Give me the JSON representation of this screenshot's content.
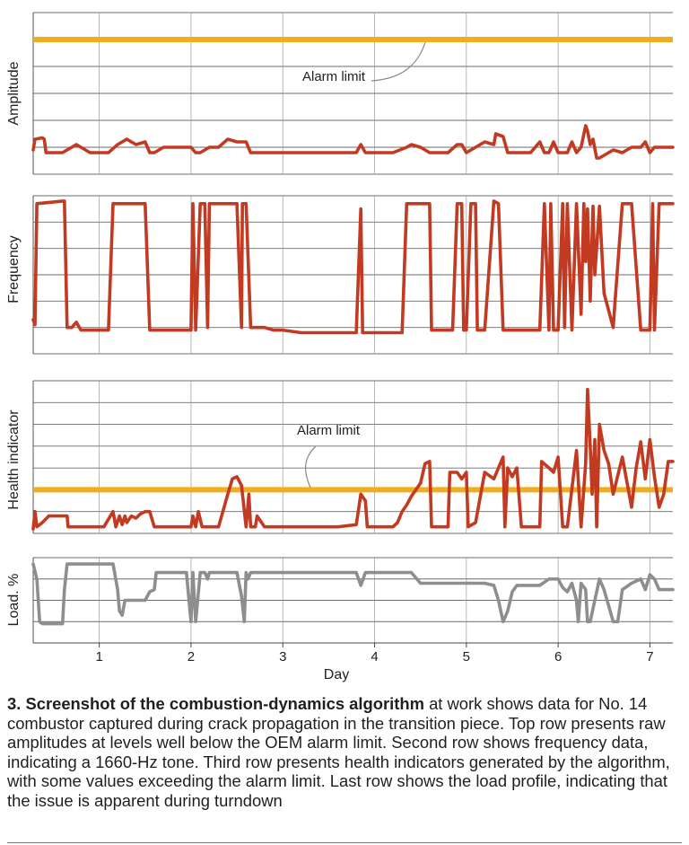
{
  "chart_data": [
    {
      "type": "line",
      "ylabel": "Amplitude",
      "ylim": [
        0,
        6
      ],
      "alarm_limit": {
        "label": "Alarm limit",
        "y": 5.0,
        "color": "#f2ad1f"
      },
      "series": [
        {
          "color": "#c23a22",
          "x": [
            0.28,
            0.3,
            0.38,
            0.4,
            0.42,
            0.6,
            0.75,
            0.9,
            1.0,
            1.1,
            1.2,
            1.3,
            1.4,
            1.5,
            1.55,
            1.6,
            1.7,
            1.8,
            1.9,
            2.0,
            2.05,
            2.1,
            2.2,
            2.3,
            2.4,
            2.5,
            2.6,
            2.65,
            2.7,
            2.8,
            2.9,
            3.0,
            3.2,
            3.4,
            3.6,
            3.8,
            3.85,
            3.9,
            3.95,
            4.0,
            4.2,
            4.35,
            4.4,
            4.5,
            4.6,
            4.7,
            4.8,
            4.9,
            4.95,
            5.0,
            5.1,
            5.2,
            5.3,
            5.32,
            5.4,
            5.45,
            5.5,
            5.6,
            5.7,
            5.8,
            5.85,
            5.9,
            5.95,
            6.0,
            6.1,
            6.15,
            6.2,
            6.25,
            6.3,
            6.32,
            6.35,
            6.38,
            6.42,
            6.45,
            6.5,
            6.6,
            6.7,
            6.8,
            6.9,
            6.95,
            7.0,
            7.05,
            7.1,
            7.2,
            7.25
          ],
          "y": [
            0.9,
            1.3,
            1.35,
            1.3,
            0.8,
            0.8,
            1.1,
            0.8,
            0.8,
            0.8,
            1.1,
            1.3,
            1.1,
            1.2,
            0.8,
            0.8,
            1.0,
            1.0,
            1.0,
            1.0,
            0.8,
            0.8,
            1.0,
            1.0,
            1.3,
            1.2,
            1.2,
            0.8,
            0.8,
            0.8,
            0.8,
            0.8,
            0.8,
            0.8,
            0.8,
            0.8,
            1.1,
            0.8,
            0.8,
            0.8,
            0.8,
            1.0,
            1.1,
            1.0,
            0.8,
            0.8,
            0.8,
            1.1,
            1.1,
            0.8,
            1.0,
            1.2,
            1.1,
            1.5,
            1.4,
            0.8,
            0.8,
            0.8,
            0.8,
            1.2,
            0.8,
            0.8,
            1.2,
            0.8,
            0.8,
            1.2,
            0.8,
            1.0,
            1.8,
            1.6,
            1.1,
            1.3,
            0.6,
            0.6,
            0.7,
            0.9,
            0.8,
            1.0,
            1.0,
            1.2,
            0.8,
            1.0,
            1.0,
            1.0,
            1.0
          ]
        }
      ],
      "grid": true
    },
    {
      "type": "line",
      "ylabel": "Frequency",
      "ylim": [
        0,
        6
      ],
      "series": [
        {
          "color": "#c23a22",
          "x": [
            0.28,
            0.3,
            0.32,
            0.6,
            0.62,
            0.65,
            0.7,
            0.75,
            0.8,
            0.95,
            1.0,
            1.1,
            1.15,
            1.2,
            1.45,
            1.5,
            1.55,
            1.6,
            1.7,
            1.8,
            1.9,
            1.95,
            2.0,
            2.02,
            2.05,
            2.1,
            2.15,
            2.18,
            2.2,
            2.25,
            2.4,
            2.5,
            2.55,
            2.56,
            2.6,
            2.65,
            2.7,
            2.8,
            2.9,
            3.0,
            3.2,
            3.4,
            3.6,
            3.8,
            3.85,
            3.87,
            3.9,
            3.92,
            4.0,
            4.2,
            4.3,
            4.35,
            4.4,
            4.6,
            4.62,
            4.65,
            4.7,
            4.85,
            4.9,
            4.95,
            4.97,
            5.0,
            5.05,
            5.1,
            5.12,
            5.2,
            5.3,
            5.35,
            5.4,
            5.45,
            5.5,
            5.7,
            5.8,
            5.85,
            5.9,
            5.92,
            5.95,
            6.0,
            6.05,
            6.07,
            6.1,
            6.15,
            6.2,
            6.25,
            6.28,
            6.3,
            6.32,
            6.35,
            6.38,
            6.4,
            6.45,
            6.5,
            6.6,
            6.62,
            6.7,
            6.8,
            6.9,
            6.95,
            7.0,
            7.03,
            7.05,
            7.1,
            7.2,
            7.25
          ],
          "y": [
            1.3,
            1.1,
            5.7,
            5.8,
            5.8,
            1.0,
            1.0,
            1.2,
            0.9,
            0.9,
            0.9,
            0.9,
            5.7,
            5.7,
            5.7,
            5.7,
            0.9,
            0.9,
            0.9,
            0.9,
            0.9,
            0.9,
            0.9,
            5.7,
            0.9,
            5.7,
            5.7,
            1.0,
            5.7,
            5.7,
            5.7,
            5.7,
            1.0,
            5.7,
            5.7,
            1.0,
            1.0,
            1.0,
            0.9,
            0.9,
            0.8,
            0.8,
            0.8,
            0.8,
            5.5,
            0.8,
            0.8,
            0.8,
            0.8,
            0.8,
            0.8,
            5.7,
            5.7,
            5.7,
            0.9,
            0.9,
            0.9,
            0.9,
            5.7,
            5.7,
            0.9,
            0.9,
            5.7,
            5.7,
            0.9,
            0.9,
            5.8,
            5.7,
            0.9,
            0.9,
            0.9,
            0.9,
            0.9,
            5.7,
            0.9,
            5.7,
            0.9,
            0.9,
            5.7,
            1.0,
            5.7,
            0.9,
            5.7,
            1.5,
            5.7,
            3.5,
            5.5,
            2.0,
            5.6,
            3.0,
            5.6,
            2.3,
            1.0,
            2.0,
            5.7,
            5.7,
            0.9,
            0.9,
            0.9,
            5.7,
            0.9,
            5.7,
            5.7,
            5.7
          ]
        }
      ],
      "grid": true
    },
    {
      "type": "line",
      "ylabel": "Health indicator",
      "ylim": [
        0,
        7
      ],
      "alarm_limit": {
        "label": "Alarm limit",
        "y": 2.0,
        "color": "#f2ad1f"
      },
      "series": [
        {
          "color": "#c23a22",
          "x": [
            0.28,
            0.3,
            0.32,
            0.38,
            0.45,
            0.55,
            0.65,
            0.66,
            0.7,
            0.75,
            1.0,
            1.05,
            1.15,
            1.18,
            1.22,
            1.25,
            1.28,
            1.3,
            1.35,
            1.4,
            1.45,
            1.5,
            1.55,
            1.6,
            1.62,
            1.65,
            1.75,
            1.9,
            2.0,
            2.02,
            2.05,
            2.08,
            2.12,
            2.15,
            2.2,
            2.3,
            2.4,
            2.45,
            2.5,
            2.55,
            2.6,
            2.63,
            2.65,
            2.7,
            2.72,
            2.8,
            2.9,
            3.0,
            3.2,
            3.4,
            3.6,
            3.8,
            3.85,
            3.9,
            3.92,
            4.0,
            4.2,
            4.25,
            4.3,
            4.35,
            4.4,
            4.45,
            4.5,
            4.55,
            4.6,
            4.62,
            4.7,
            4.8,
            4.82,
            4.9,
            4.95,
            5.0,
            5.02,
            5.1,
            5.2,
            5.3,
            5.35,
            5.4,
            5.42,
            5.45,
            5.5,
            5.55,
            5.6,
            5.65,
            5.7,
            5.8,
            5.82,
            5.9,
            5.95,
            6.0,
            6.05,
            6.1,
            6.2,
            6.25,
            6.3,
            6.32,
            6.35,
            6.37,
            6.4,
            6.42,
            6.45,
            6.5,
            6.55,
            6.6,
            6.7,
            6.8,
            6.85,
            6.9,
            6.95,
            7.0,
            7.05,
            7.1,
            7.15,
            7.2,
            7.25
          ],
          "y": [
            0.2,
            1.0,
            0.3,
            0.5,
            0.8,
            0.8,
            0.8,
            0.3,
            0.3,
            0.3,
            0.3,
            0.3,
            1.0,
            0.3,
            0.8,
            0.4,
            0.8,
            0.5,
            0.8,
            0.7,
            0.9,
            1.0,
            1.0,
            0.3,
            0.3,
            0.3,
            0.3,
            0.3,
            0.3,
            0.8,
            0.3,
            1.0,
            0.3,
            0.3,
            0.3,
            0.3,
            1.8,
            2.5,
            2.6,
            2.2,
            0.3,
            1.8,
            0.3,
            0.3,
            0.8,
            0.3,
            0.3,
            0.3,
            0.3,
            0.3,
            0.3,
            0.4,
            1.8,
            1.5,
            0.3,
            0.3,
            0.3,
            0.5,
            1.0,
            1.3,
            1.7,
            2.0,
            2.3,
            3.2,
            3.3,
            0.3,
            0.3,
            0.3,
            2.8,
            2.8,
            2.5,
            2.8,
            0.3,
            0.5,
            2.8,
            2.5,
            3.0,
            3.5,
            0.3,
            3.0,
            2.6,
            3.0,
            0.3,
            0.3,
            0.3,
            0.3,
            3.3,
            3.0,
            2.8,
            3.5,
            0.3,
            0.3,
            3.8,
            0.3,
            3.2,
            6.6,
            4.0,
            1.8,
            4.3,
            0.3,
            5.0,
            3.8,
            3.2,
            1.8,
            3.5,
            1.2,
            3.0,
            4.2,
            2.5,
            4.3,
            2.6,
            1.2,
            1.8,
            3.3,
            3.3
          ]
        }
      ],
      "grid": true
    },
    {
      "type": "line",
      "ylabel": "Load. %",
      "xlabel": "Day",
      "ylim": [
        0,
        4
      ],
      "x_ticks": [
        "1",
        "2",
        "3",
        "4",
        "5",
        "6",
        "7"
      ],
      "xlim": [
        0.28,
        7.25
      ],
      "series": [
        {
          "color": "#8e8e8e",
          "x": [
            0.28,
            0.32,
            0.35,
            0.38,
            0.6,
            0.62,
            0.65,
            0.95,
            1.0,
            1.15,
            1.2,
            1.22,
            1.25,
            1.28,
            1.3,
            1.5,
            1.55,
            1.6,
            1.62,
            1.65,
            1.9,
            1.95,
            2.0,
            2.02,
            2.05,
            2.1,
            2.15,
            2.18,
            2.2,
            2.3,
            2.4,
            2.5,
            2.55,
            2.58,
            2.6,
            2.62,
            2.65,
            2.7,
            2.72,
            2.8,
            3.0,
            3.5,
            3.8,
            3.85,
            3.9,
            3.95,
            4.0,
            4.2,
            4.3,
            4.4,
            4.5,
            4.6,
            4.7,
            4.8,
            4.9,
            5.0,
            5.1,
            5.2,
            5.3,
            5.35,
            5.4,
            5.45,
            5.5,
            5.55,
            5.6,
            5.7,
            5.8,
            5.9,
            5.95,
            6.0,
            6.05,
            6.1,
            6.15,
            6.2,
            6.22,
            6.25,
            6.3,
            6.32,
            6.35,
            6.4,
            6.45,
            6.5,
            6.6,
            6.65,
            6.7,
            6.8,
            6.9,
            6.95,
            7.0,
            7.05,
            7.1,
            7.2,
            7.25
          ],
          "y": [
            3.7,
            3.0,
            1.0,
            0.9,
            0.9,
            2.5,
            3.7,
            3.7,
            3.7,
            3.7,
            2.5,
            1.5,
            1.3,
            2.0,
            2.0,
            2.0,
            2.4,
            2.5,
            3.3,
            3.3,
            3.3,
            3.3,
            1.0,
            3.3,
            1.0,
            3.3,
            3.3,
            3.0,
            3.3,
            3.3,
            3.3,
            3.3,
            2.2,
            1.0,
            3.3,
            3.0,
            3.3,
            3.3,
            3.3,
            3.3,
            3.3,
            3.3,
            3.3,
            2.7,
            3.3,
            3.3,
            3.3,
            3.3,
            3.3,
            3.3,
            2.8,
            2.8,
            2.8,
            2.8,
            2.8,
            2.8,
            2.8,
            2.8,
            2.7,
            2.0,
            1.0,
            1.5,
            2.4,
            2.7,
            2.7,
            2.7,
            2.7,
            3.0,
            3.0,
            3.0,
            2.6,
            2.4,
            2.8,
            2.0,
            1.0,
            2.8,
            2.5,
            1.0,
            1.0,
            2.0,
            3.0,
            2.5,
            1.0,
            1.0,
            2.5,
            2.8,
            3.0,
            2.5,
            3.2,
            3.0,
            2.5,
            2.5,
            2.5
          ]
        }
      ],
      "grid": true
    }
  ],
  "caption": {
    "bold": "3. Screenshot of the combustion-dynamics algorithm",
    "text": " at work shows data for No. 14 combustor captured during crack propagation in the transition piece. Top row presents raw amplitudes at levels well below the OEM alarm limit. Second row shows frequency data, indicating a 1660-Hz tone. Third row presents health indicators generated by the algorithm, with some values exceeding the alarm limit. Last row shows the load profile, indicating that the issue is apparent during turndown"
  }
}
